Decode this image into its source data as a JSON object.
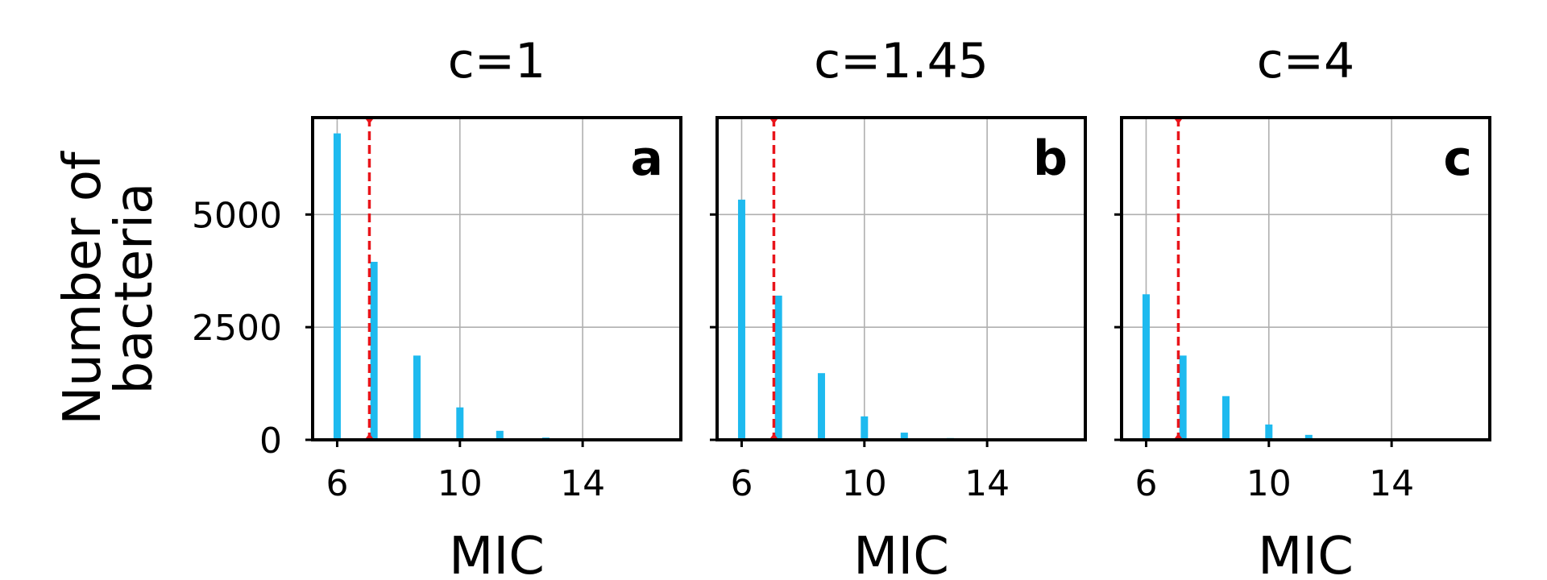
{
  "chart_data": [
    {
      "type": "bar",
      "title": "c=1",
      "panel_label": "a",
      "xlabel": "MIC",
      "ylabel": "Number of\nbacteria",
      "x": [
        6.0,
        7.2,
        8.6,
        10.0,
        11.3,
        12.8
      ],
      "values": [
        6800,
        3950,
        1870,
        720,
        200,
        50
      ],
      "xlim": [
        5.2,
        17.2
      ],
      "ylim": [
        0,
        7150
      ],
      "xticks": [
        "6",
        "10",
        "14"
      ],
      "yticks": [
        "0",
        "2500",
        "5000"
      ],
      "reference_line_x": 7.05,
      "grid": true,
      "colors": {
        "bars": "#1ebaef",
        "reference_line": "#e8151b"
      }
    },
    {
      "type": "bar",
      "title": "c=1.45",
      "panel_label": "b",
      "xlabel": "MIC",
      "x": [
        6.0,
        7.2,
        8.6,
        10.0,
        11.3,
        12.8
      ],
      "values": [
        5330,
        3200,
        1480,
        520,
        160,
        40
      ],
      "xlim": [
        5.2,
        17.2
      ],
      "ylim": [
        0,
        7150
      ],
      "xticks": [
        "6",
        "10",
        "14"
      ],
      "reference_line_x": 7.05,
      "grid": true,
      "colors": {
        "bars": "#1ebaef",
        "reference_line": "#e8151b"
      }
    },
    {
      "type": "bar",
      "title": "c=4",
      "panel_label": "c",
      "xlabel": "MIC",
      "x": [
        6.0,
        7.2,
        8.6,
        10.0,
        11.3
      ],
      "values": [
        3230,
        1870,
        970,
        340,
        110
      ],
      "xlim": [
        5.2,
        17.2
      ],
      "ylim": [
        0,
        7150
      ],
      "xticks": [
        "6",
        "10",
        "14"
      ],
      "reference_line_x": 7.05,
      "grid": true,
      "colors": {
        "bars": "#1ebaef",
        "reference_line": "#e8151b"
      }
    }
  ]
}
